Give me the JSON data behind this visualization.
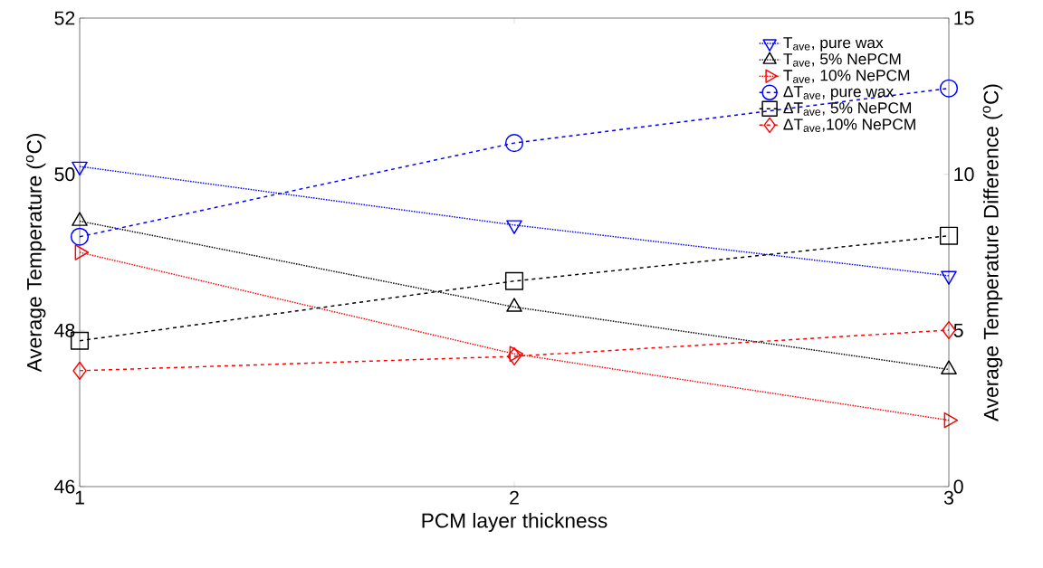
{
  "chart_data": {
    "type": "line",
    "xlabel": "PCM layer thickness",
    "ylabel": "Average Temperature ($^{o}$C)",
    "y2label": "Average Temperature Difference ($^{o}$C)",
    "x": [
      1,
      2,
      3
    ],
    "xlim": [
      1,
      3
    ],
    "xticks": [
      1,
      2,
      3
    ],
    "ylim": [
      46,
      52
    ],
    "yticks": [
      46,
      48,
      50,
      52
    ],
    "y2lim": [
      0,
      15
    ],
    "y2ticks": [
      0,
      5,
      10,
      15
    ],
    "grid": false,
    "legend": "top right",
    "series": [
      {
        "name": "T$_{ave}$, pure wax",
        "color": "#0000ff",
        "marker": "triangle-down",
        "line_style": "dotted",
        "values": [
          50.1,
          49.35,
          48.7
        ]
      },
      {
        "name": "T$_{ave}$, 5% NePCM",
        "color": "#000000",
        "marker": "triangle",
        "line_style": "dotted",
        "values": [
          49.4,
          48.3,
          47.5
        ]
      },
      {
        "name": "T$_{ave}$, 10% NePCM",
        "color": "#ff0000",
        "marker": "triangle-right",
        "line_style": "dotted",
        "values": [
          49.0,
          47.7,
          46.85
        ]
      },
      {
        "name": "ΔT$_{ave}$, pure wax",
        "color": "#0000ff",
        "marker": "circle",
        "line_style": "dashed",
        "axis": "y2",
        "values": [
          8.0,
          11.0,
          12.75
        ]
      },
      {
        "name": "ΔT$_{ave}$, 5% NePCM",
        "color": "#000000",
        "marker": "square",
        "line_style": "dashed",
        "axis": "y2",
        "values": [
          4.67,
          6.58,
          8.03
        ]
      },
      {
        "name": "ΔT$_{ave}$,10% NePCM",
        "color": "#ff0000",
        "marker": "diamond",
        "line_style": "dashed",
        "axis": "y2",
        "values": [
          3.71,
          4.17,
          5.01
        ]
      }
    ]
  }
}
